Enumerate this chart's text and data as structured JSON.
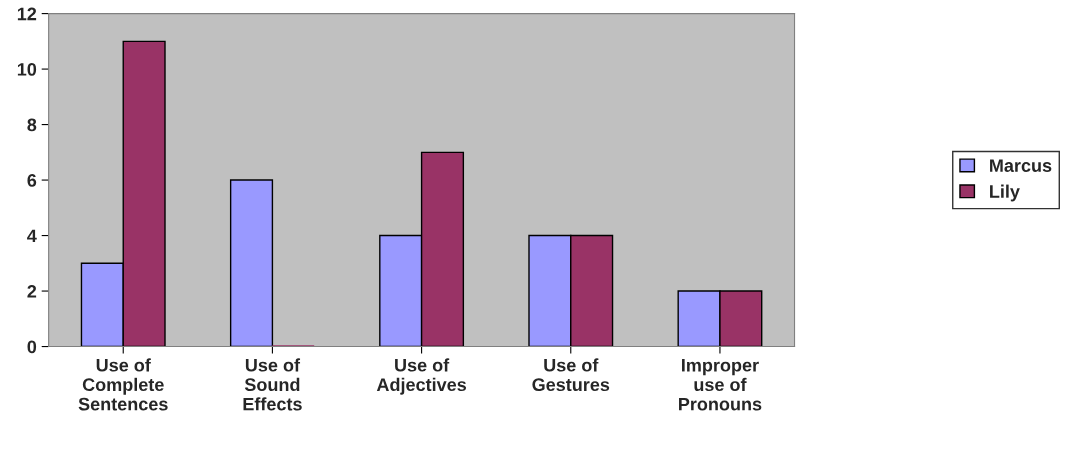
{
  "chart_data": {
    "type": "bar",
    "categories": [
      "Use of\nComplete\nSentences",
      "Use of\nSound\nEffects",
      "Use of\nAdjectives",
      "Use of\nGestures",
      "Improper\nuse of\nPronouns"
    ],
    "series": [
      {
        "name": "Marcus",
        "color": "#9999ff",
        "values": [
          3,
          6,
          4,
          4,
          2
        ]
      },
      {
        "name": "Lily",
        "color": "#993366",
        "values": [
          11,
          0,
          7,
          4,
          2
        ]
      }
    ],
    "ylim": [
      0,
      12
    ],
    "yticks": [
      0,
      2,
      4,
      6,
      8,
      10,
      12
    ],
    "grid": false,
    "legend": "right"
  }
}
